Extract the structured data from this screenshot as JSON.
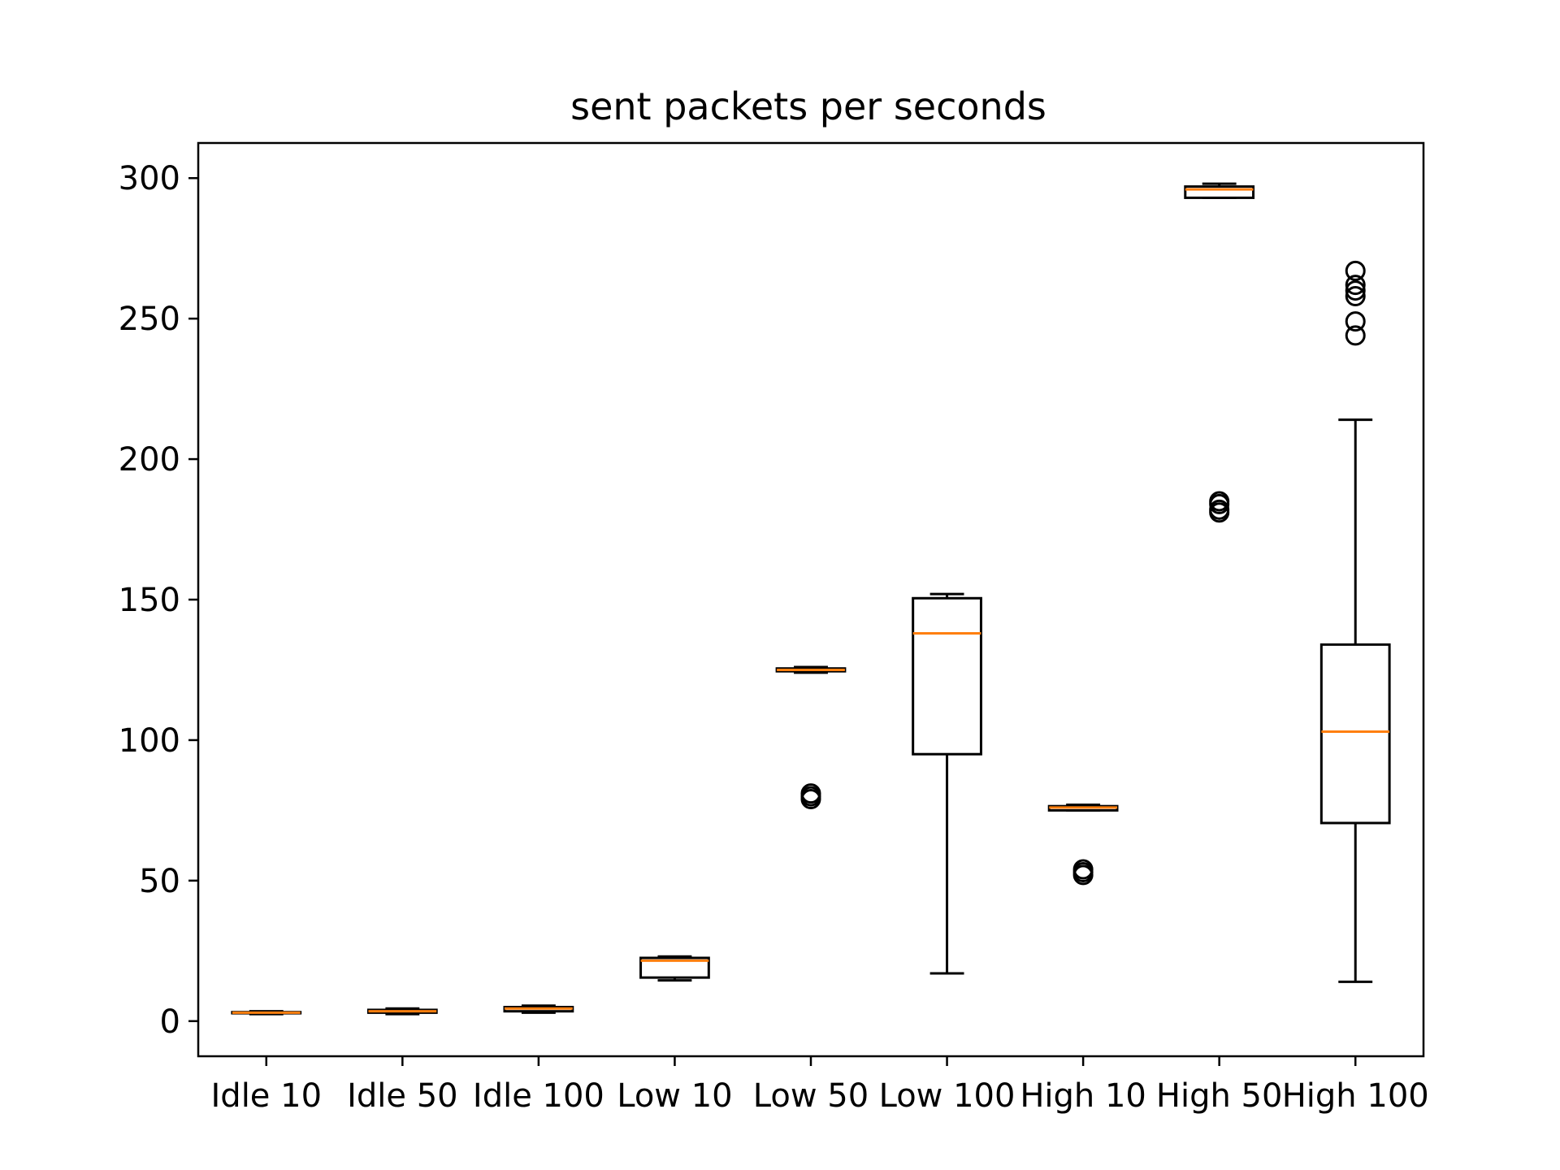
{
  "chart_data": {
    "type": "box",
    "title": "sent packets per seconds",
    "xlabel": "",
    "ylabel": "",
    "ylim": [
      -12.5,
      312.5
    ],
    "yticks": [
      0,
      50,
      100,
      150,
      200,
      250,
      300
    ],
    "grid": false,
    "categories": [
      "Idle 10",
      "Idle 50",
      "Idle 100",
      "Low 10",
      "Low 50",
      "Low 100",
      "High 10",
      "High 50",
      "High 100"
    ],
    "boxes": [
      {
        "whisker_low": 2.5,
        "q1": 2.8,
        "median": 3.0,
        "q3": 3.2,
        "whisker_high": 3.5,
        "outliers": []
      },
      {
        "whisker_low": 2.5,
        "q1": 3.0,
        "median": 3.5,
        "q3": 4.0,
        "whisker_high": 4.5,
        "outliers": []
      },
      {
        "whisker_low": 3.0,
        "q1": 3.5,
        "median": 4.5,
        "q3": 5.0,
        "whisker_high": 5.5,
        "outliers": []
      },
      {
        "whisker_low": 14.5,
        "q1": 15.5,
        "median": 21.5,
        "q3": 22.5,
        "whisker_high": 23.0,
        "outliers": []
      },
      {
        "whisker_low": 124.0,
        "q1": 124.5,
        "median": 125.0,
        "q3": 125.5,
        "whisker_high": 126.0,
        "outliers": [
          79,
          80,
          81
        ]
      },
      {
        "whisker_low": 17.0,
        "q1": 95.0,
        "median": 138.0,
        "q3": 150.5,
        "whisker_high": 152.0,
        "outliers": []
      },
      {
        "whisker_low": 75.0,
        "q1": 75.0,
        "median": 76.0,
        "q3": 76.5,
        "whisker_high": 77.0,
        "outliers": [
          52,
          53,
          54
        ]
      },
      {
        "whisker_low": 293.0,
        "q1": 293.0,
        "median": 296.0,
        "q3": 297.0,
        "whisker_high": 298.0,
        "outliers": [
          181,
          182,
          184,
          185
        ]
      },
      {
        "whisker_low": 14.0,
        "q1": 70.5,
        "median": 103.0,
        "q3": 134.0,
        "whisker_high": 214.0,
        "outliers": [
          244,
          249,
          258,
          260,
          262,
          267
        ]
      }
    ],
    "colors": {
      "box": "#000000",
      "median": "#ff7f0e",
      "background": "#ffffff"
    }
  }
}
